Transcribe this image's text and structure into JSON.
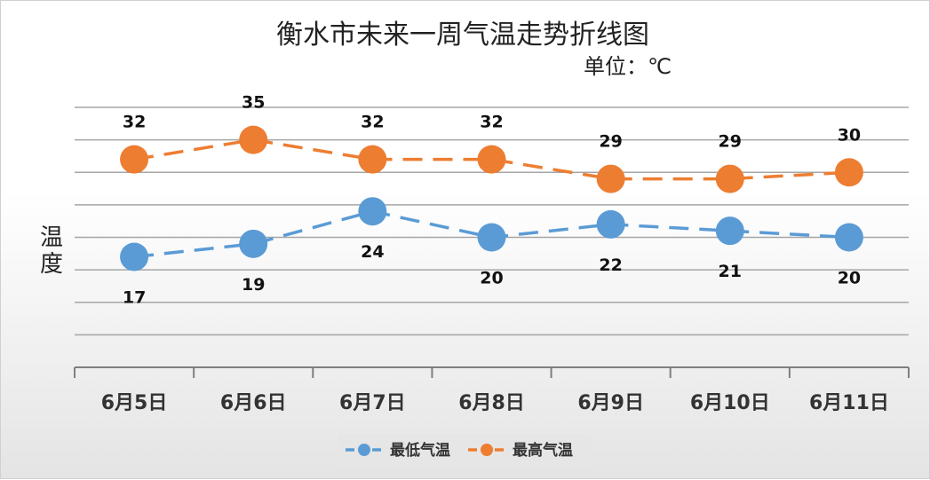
{
  "chart_data": {
    "type": "line",
    "title": "衡水市未来一周气温走势折线图",
    "unit_label": "单位：℃",
    "ylabel": "温度",
    "xlabel": "",
    "categories": [
      "6月5日",
      "6月6日",
      "6月7日",
      "6月8日",
      "6月9日",
      "6月10日",
      "6月11日"
    ],
    "ylim": [
      0,
      40
    ],
    "grid": true,
    "legend": "bottom",
    "series": [
      {
        "name": "最低气温",
        "color": "#5b9bd5",
        "values": [
          17,
          19,
          24,
          20,
          22,
          21,
          20
        ]
      },
      {
        "name": "最高气温",
        "color": "#ed7d31",
        "values": [
          32,
          35,
          32,
          32,
          29,
          29,
          30
        ]
      }
    ]
  }
}
